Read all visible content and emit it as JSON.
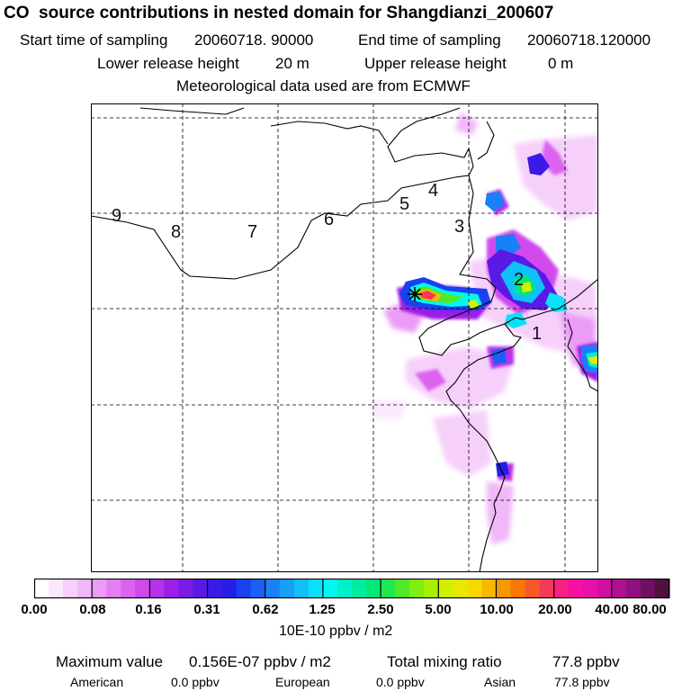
{
  "header": {
    "title": "CO  source contributions in nested domain for Shangdianzi_200607",
    "start_label": "Start time of sampling",
    "start_value": "20060718. 90000",
    "end_label": "End time of sampling",
    "end_value": "20060718.120000",
    "lower_label": "Lower release height",
    "lower_value": "20 m",
    "upper_label": "Upper release height",
    "upper_value": "0 m",
    "met_note": "Meteorological data used are from ECMWF"
  },
  "map": {
    "day_markers": [
      "1",
      "2",
      "3",
      "4",
      "5",
      "6",
      "7",
      "8",
      "9"
    ],
    "station_marker": "receptor-star"
  },
  "colorbar": {
    "tick_labels": [
      "0.00",
      "0.08",
      "0.16",
      "0.31",
      "0.62",
      "1.25",
      "2.50",
      "5.00",
      "10.00",
      "20.00",
      "40.00",
      "80.00"
    ],
    "unit": "10E-10 ppbv / m2",
    "colors": [
      "#ffffff",
      "#fbe8fd",
      "#f6d0fb",
      "#f1b7f9",
      "#eb9cf6",
      "#e47ff3",
      "#dc63ef",
      "#cf49ec",
      "#b532e8",
      "#9c1fe8",
      "#7a1ae6",
      "#5a1ae6",
      "#3a1ae8",
      "#241ee8",
      "#1a40f0",
      "#1a60f4",
      "#1a80f8",
      "#16a0f8",
      "#10c0f8",
      "#0ae0f8",
      "#00f8f0",
      "#00f0c8",
      "#00eca0",
      "#00e878",
      "#20e850",
      "#50ea28",
      "#80ee10",
      "#a8f000",
      "#d0f000",
      "#e8e800",
      "#f8d800",
      "#f8b800",
      "#f89800",
      "#f87800",
      "#f85828",
      "#f83858",
      "#f82080",
      "#f810a0",
      "#e810a8",
      "#d010a0",
      "#b01090",
      "#901080",
      "#701060",
      "#501040"
    ]
  },
  "summary": {
    "max_label": "Maximum value",
    "max_value": "0.156E-07 ppbv / m2",
    "total_label": "Total mixing ratio",
    "total_value": "77.8 ppbv",
    "american_label": "American",
    "american_value": "0.0 ppbv",
    "european_label": "European",
    "european_value": "0.0 ppbv",
    "asian_label": "Asian",
    "asian_value": "77.8 ppbv"
  }
}
